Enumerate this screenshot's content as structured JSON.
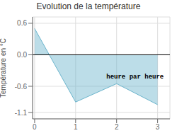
{
  "chart_data": {
    "type": "area",
    "title": "Evolution de la température",
    "ylabel": "Température en °C",
    "x": [
      0,
      1,
      2,
      3
    ],
    "values": [
      0.5,
      -0.9,
      -0.55,
      -0.95
    ],
    "color": "#6ab4cc",
    "xlim": [
      -0.05,
      3.3
    ],
    "xticks": [
      0,
      1,
      2,
      3
    ],
    "ylim": [
      -1.22,
      0.72
    ],
    "yticks": [
      -1.1,
      -0.6,
      {
        "value": 0,
        "label": "0.0"
      },
      0.6
    ],
    "grid": true,
    "annotations": [
      {
        "text": "heure par heure",
        "x": 1.75,
        "y": -0.38
      }
    ]
  }
}
